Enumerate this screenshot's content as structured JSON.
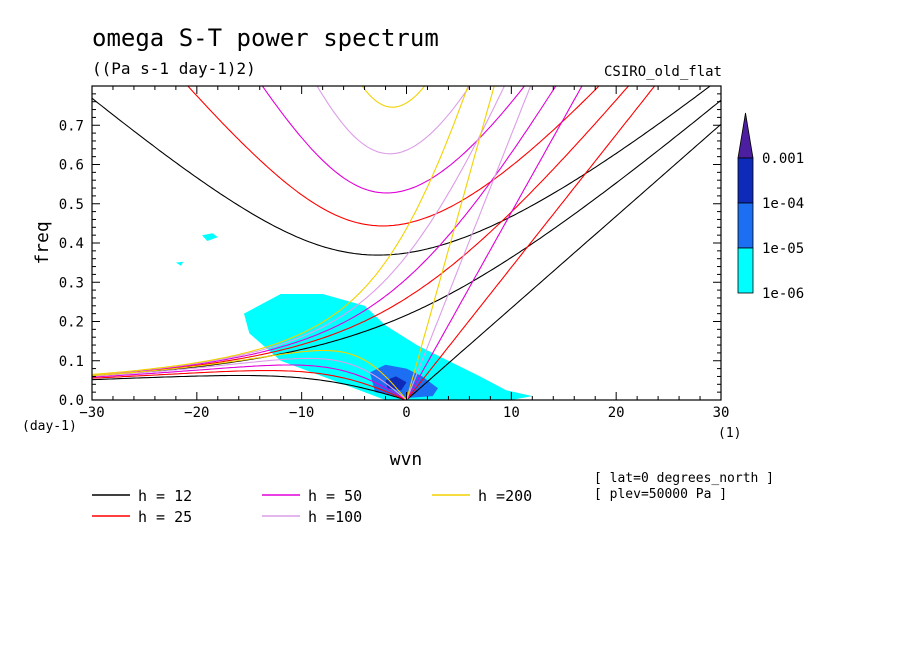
{
  "chart_data": {
    "type": "contour",
    "title": "omega S-T power spectrum",
    "units": "((Pa s-1 day-1)2)",
    "dataset": "CSIRO_old_flat",
    "xlabel": "wvn",
    "ylabel": "freq",
    "x_unit_label": "(1)",
    "y_unit_label": "(day-1)",
    "xlim": [
      -30,
      30
    ],
    "ylim": [
      0,
      0.8
    ],
    "xticks": [
      "-30",
      "-20",
      "-10",
      "0",
      "10",
      "20",
      "30"
    ],
    "yticks": [
      "0.0",
      "0.1",
      "0.2",
      "0.3",
      "0.4",
      "0.5",
      "0.6",
      "0.7"
    ],
    "colorbar": {
      "levels": [
        "0.001",
        "1e-04",
        "1e-05",
        "1e-06"
      ],
      "colors": [
        "#4b1fa0",
        "#0d2ab8",
        "#1c6ef2",
        "#00ffff"
      ]
    },
    "dispersion_curves": [
      {
        "name": "h = 12",
        "h": 12,
        "color": "#000000"
      },
      {
        "name": "h = 25",
        "h": 25,
        "color": "#ff0000"
      },
      {
        "name": "h = 50",
        "h": 50,
        "color": "#e000d8"
      },
      {
        "name": "h =100",
        "h": 100,
        "color": "#dc9ee8"
      },
      {
        "name": "h =200",
        "h": 200,
        "color": "#f2d200"
      }
    ],
    "footer": [
      "[ lat=0 degrees_north ]",
      "[ plev=50000 Pa ]"
    ],
    "power_regions": [
      {
        "level": "1e-06",
        "points": [
          [
            -15.5,
            0.22
          ],
          [
            -12,
            0.27
          ],
          [
            -8,
            0.27
          ],
          [
            -4,
            0.24
          ],
          [
            -2,
            0.19
          ],
          [
            1,
            0.14
          ],
          [
            4,
            0.1
          ],
          [
            7,
            0.06
          ],
          [
            9.5,
            0.025
          ],
          [
            12,
            0.01
          ],
          [
            10,
            0.0
          ],
          [
            -2,
            0.0
          ],
          [
            -6,
            0.04
          ],
          [
            -9,
            0.07
          ],
          [
            -12,
            0.1
          ],
          [
            -15,
            0.17
          ]
        ]
      },
      {
        "level": "1e-06",
        "points": [
          [
            -19.5,
            0.42
          ],
          [
            -18.5,
            0.425
          ],
          [
            -18,
            0.415
          ],
          [
            -19,
            0.405
          ]
        ]
      },
      {
        "level": "1e-06",
        "points": [
          [
            -22,
            0.35
          ],
          [
            -21.3,
            0.352
          ],
          [
            -21.5,
            0.342
          ]
        ]
      },
      {
        "level": "1e-05",
        "points": [
          [
            -3.5,
            0.07
          ],
          [
            -2,
            0.09
          ],
          [
            0,
            0.08
          ],
          [
            1.5,
            0.06
          ],
          [
            3,
            0.03
          ],
          [
            2.5,
            0.01
          ],
          [
            0,
            0.005
          ],
          [
            -3,
            0.02
          ]
        ]
      },
      {
        "level": "1e-04",
        "points": [
          [
            -2,
            0.05
          ],
          [
            -1,
            0.06
          ],
          [
            0,
            0.045
          ],
          [
            -0.5,
            0.025
          ],
          [
            -1.8,
            0.03
          ]
        ]
      }
    ]
  }
}
